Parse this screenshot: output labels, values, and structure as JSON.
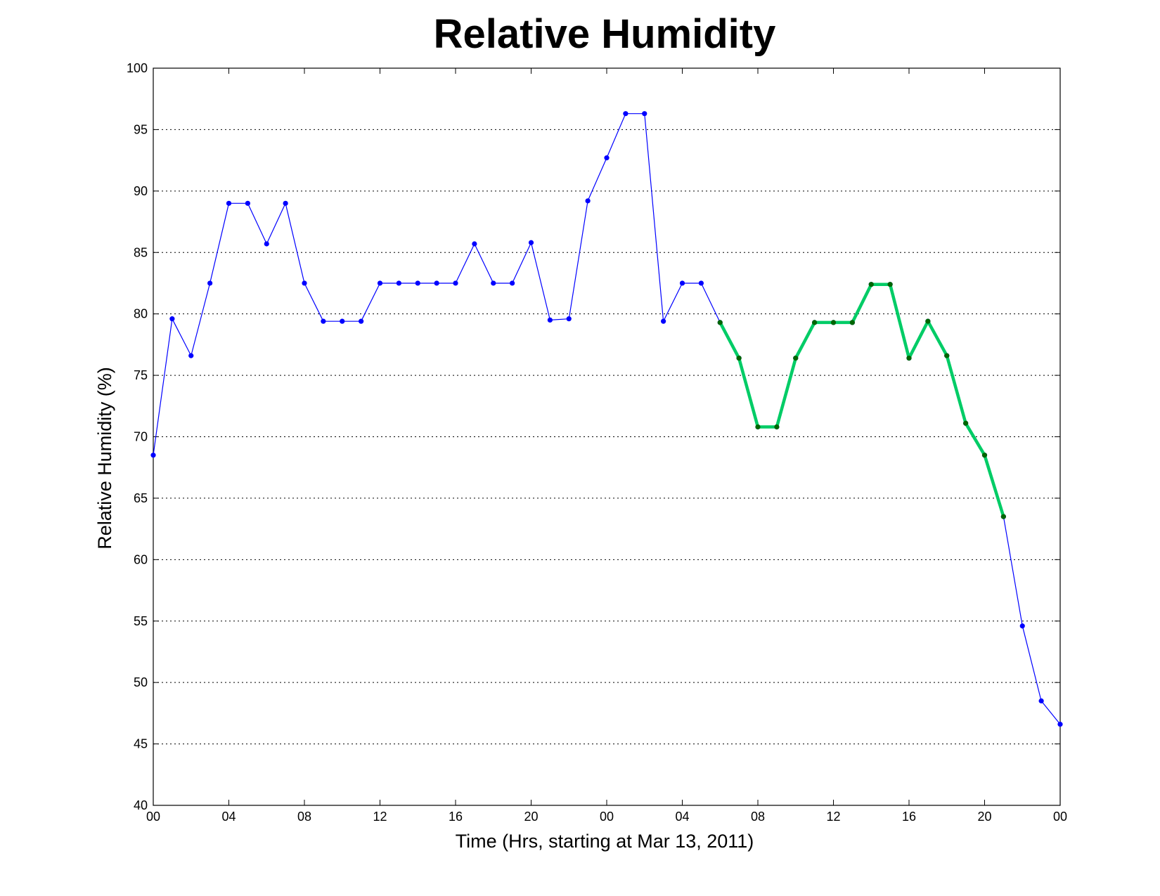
{
  "chart_data": {
    "type": "line",
    "title": "Relative Humidity",
    "xlabel": "Time (Hrs, starting at Mar 13, 2011)",
    "ylabel": "Relative Humidity (%)",
    "xlim": [
      0,
      48
    ],
    "ylim": [
      40,
      100
    ],
    "grid": "dotted, horizontal",
    "x_ticks": [
      0,
      4,
      8,
      12,
      16,
      20,
      24,
      28,
      32,
      36,
      40,
      44,
      48
    ],
    "x_tick_labels": [
      "00",
      "04",
      "08",
      "12",
      "16",
      "20",
      "00",
      "04",
      "08",
      "12",
      "16",
      "20",
      "00"
    ],
    "y_ticks": [
      40,
      45,
      50,
      55,
      60,
      65,
      70,
      75,
      80,
      85,
      90,
      95,
      100
    ],
    "y_tick_labels": [
      "40",
      "45",
      "50",
      "55",
      "60",
      "65",
      "70",
      "75",
      "80",
      "85",
      "90",
      "95",
      "100"
    ],
    "series": [
      {
        "color": "#0000ff",
        "marker_color": "#0000ff",
        "x": [
          0,
          1,
          2,
          3,
          4,
          5,
          6,
          7,
          8,
          9,
          10,
          11,
          12,
          13,
          14,
          15,
          16,
          17,
          18,
          19,
          20,
          21,
          22,
          23,
          24,
          25,
          26,
          27,
          28,
          29,
          30,
          31,
          32,
          33,
          34,
          35,
          36,
          37,
          38,
          39,
          40,
          41,
          42,
          43,
          44,
          45,
          46,
          47,
          48
        ],
        "values": [
          68.5,
          79.6,
          76.6,
          82.5,
          89.0,
          89.0,
          85.7,
          89.0,
          82.5,
          79.4,
          79.4,
          79.4,
          82.5,
          82.5,
          82.5,
          82.5,
          82.5,
          85.7,
          82.5,
          82.5,
          85.8,
          79.5,
          79.6,
          89.2,
          92.7,
          96.3,
          96.3,
          79.4,
          82.5,
          82.5,
          79.3,
          76.4,
          70.8,
          70.8,
          76.4,
          79.3,
          79.3,
          79.3,
          82.4,
          82.4,
          76.4,
          79.4,
          76.6,
          71.1,
          68.5,
          63.5,
          54.6,
          48.5,
          46.6
        ]
      },
      {
        "color": "#00cc66",
        "marker_color": "#006600",
        "x": [
          30,
          31,
          32,
          33,
          34,
          35,
          36,
          37,
          38,
          39,
          40,
          41,
          42,
          43,
          44,
          45
        ],
        "values": [
          79.3,
          76.4,
          70.8,
          70.8,
          76.4,
          79.3,
          79.3,
          79.3,
          82.4,
          82.4,
          76.4,
          79.4,
          76.6,
          71.1,
          68.5,
          63.5
        ]
      }
    ]
  }
}
